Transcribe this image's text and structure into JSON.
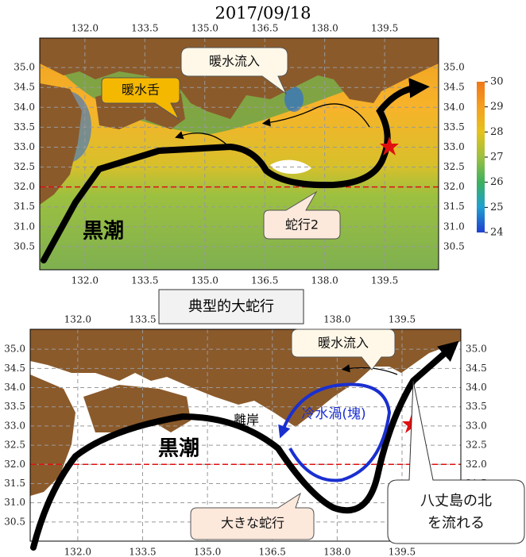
{
  "top_map": {
    "title": "2017/09/18",
    "xlim": [
      130.87,
      140.85
    ],
    "ylim": [
      29.92,
      35.74
    ],
    "xticks": [
      {
        "value": 132,
        "label": "132.0"
      },
      {
        "value": 133.5,
        "label": "133.5"
      },
      {
        "value": 135,
        "label": "135.0"
      },
      {
        "value": 136.5,
        "label": "136.5"
      },
      {
        "value": 138,
        "label": "138.0"
      },
      {
        "value": 139.5,
        "label": "139.5"
      }
    ],
    "yticks": [
      {
        "value": 30.5,
        "label": "30.5"
      },
      {
        "value": 31,
        "label": "31.0"
      },
      {
        "value": 31.5,
        "label": "31.5"
      },
      {
        "value": 32,
        "label": "32.0"
      },
      {
        "value": 32.5,
        "label": "32.5"
      },
      {
        "value": 33,
        "label": "33.0"
      },
      {
        "value": 33.5,
        "label": "33.5"
      },
      {
        "value": 34,
        "label": "34.0"
      },
      {
        "value": 34.5,
        "label": "34.5"
      },
      {
        "value": 35,
        "label": "35.0"
      }
    ],
    "reference_line": 32,
    "colorbar": {
      "lim": [
        24,
        30
      ],
      "ticks": [
        24,
        25,
        26,
        27,
        28,
        29,
        30
      ]
    },
    "annotations": {
      "warm_inflow": "暖水流入",
      "warm_tongue": "暖水舌",
      "kuroshio": "黒潮",
      "meander": "蛇行2"
    }
  },
  "section_label": "典型的大蛇行",
  "bottom_map": {
    "xlim": [
      130.9,
      140.86
    ],
    "ylim": [
      30.0,
      35.52
    ],
    "xticks": [
      {
        "value": 132,
        "label": "132.0"
      },
      {
        "value": 133.5,
        "label": "133.5"
      },
      {
        "value": 135,
        "label": "135.0"
      },
      {
        "value": 136.5,
        "label": "136.5"
      },
      {
        "value": 138,
        "label": "138.0"
      },
      {
        "value": 139.5,
        "label": "139.5"
      }
    ],
    "yticks": [
      {
        "value": 30.5,
        "label": "30.5"
      },
      {
        "value": 31,
        "label": "31.0"
      },
      {
        "value": 31.5,
        "label": "31.5"
      },
      {
        "value": 32,
        "label": "32.0"
      },
      {
        "value": 32.5,
        "label": "32.5"
      },
      {
        "value": 33,
        "label": "33.0"
      },
      {
        "value": 33.5,
        "label": "33.5"
      },
      {
        "value": 34,
        "label": "34.0"
      },
      {
        "value": 34.5,
        "label": "34.5"
      },
      {
        "value": 35,
        "label": "35.0"
      }
    ],
    "reference_line": 32,
    "annotations": {
      "warm_inflow": "暖水流入",
      "cold_eddy": "冷水渦(塊)",
      "offshore": "離岸",
      "kuroshio": "黒潮",
      "large_meander": "大きな蛇行",
      "hachijo_note": [
        "八丈島の北",
        "を流れる"
      ]
    }
  }
}
